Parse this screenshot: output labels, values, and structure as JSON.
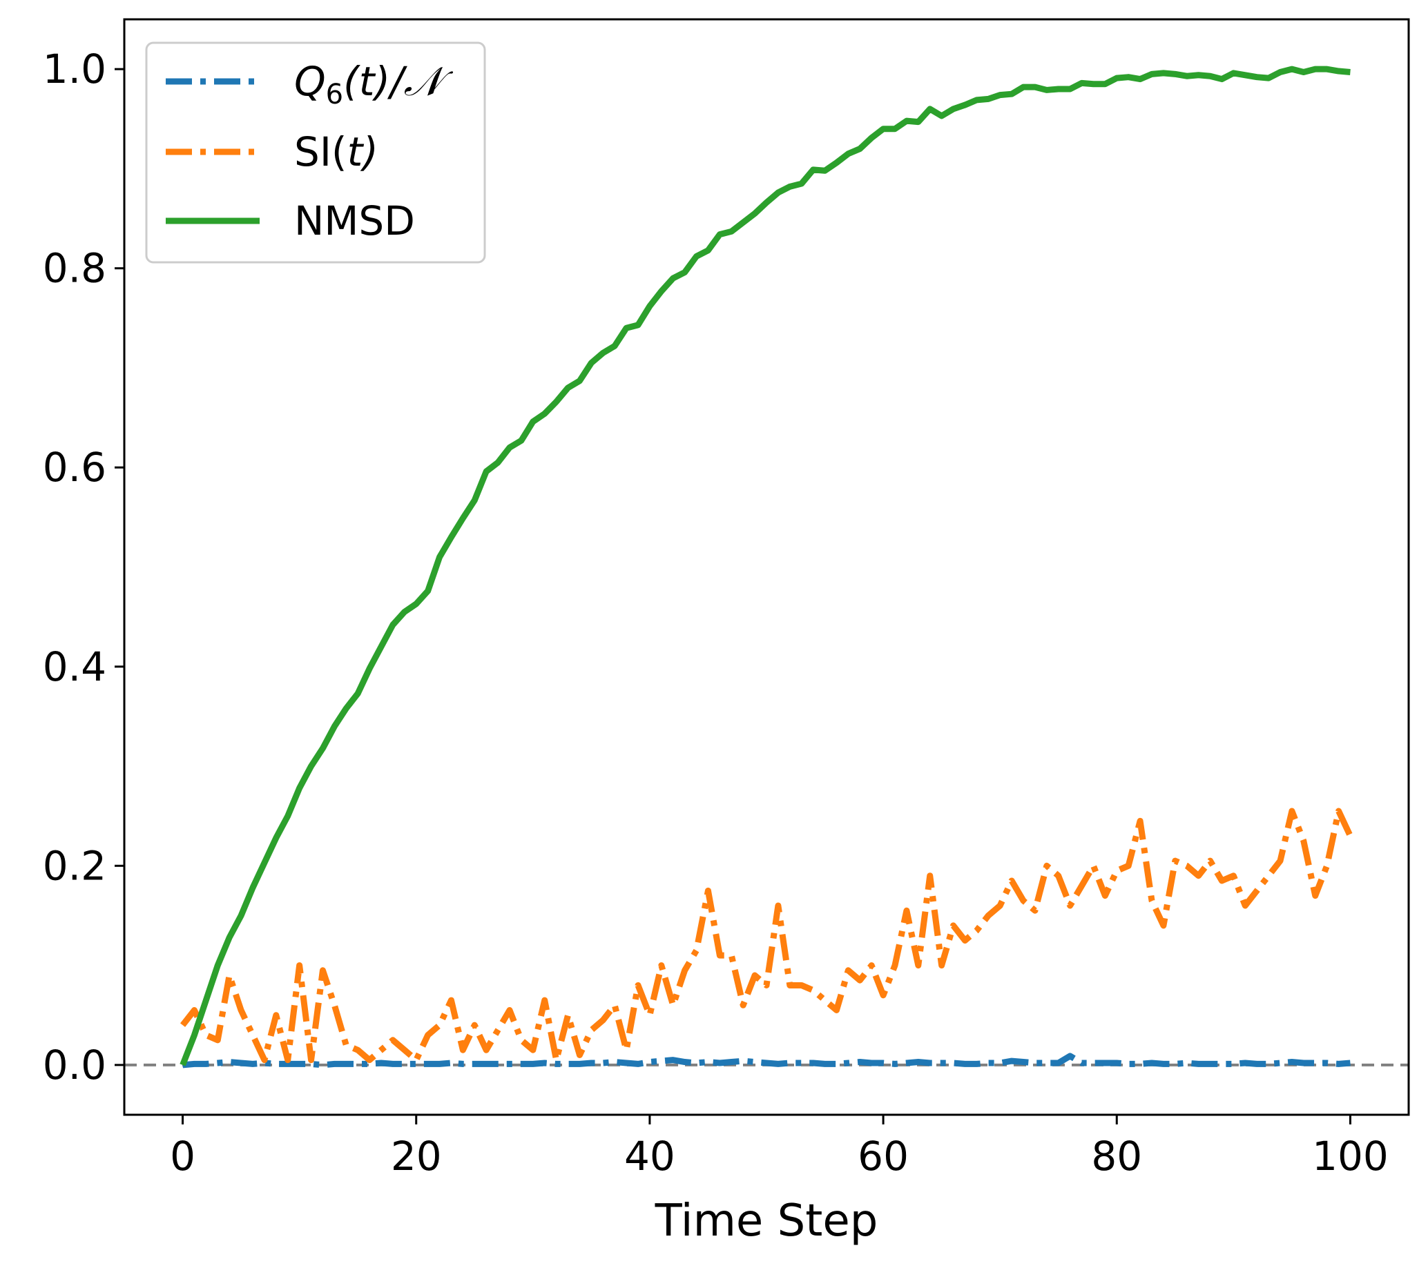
{
  "chart_data": {
    "type": "line",
    "title": "",
    "xlabel": "Time Step",
    "ylabel": "",
    "xlim": [
      -5,
      105
    ],
    "ylim": [
      -0.05,
      1.05
    ],
    "xticks": [
      0,
      20,
      40,
      60,
      80,
      100
    ],
    "xtick_labels": [
      "0",
      "20",
      "40",
      "60",
      "80",
      "100"
    ],
    "yticks": [
      0.0,
      0.2,
      0.4,
      0.6,
      0.8,
      1.0
    ],
    "ytick_labels": [
      "0.0",
      "0.2",
      "0.4",
      "0.6",
      "0.8",
      "1.0"
    ],
    "grid": false,
    "legend_position": "top-left",
    "reference_line": {
      "y": 0.0,
      "style": "dashed",
      "color": "#808080"
    },
    "x": [
      0,
      1,
      2,
      3,
      4,
      5,
      6,
      7,
      8,
      9,
      10,
      11,
      12,
      13,
      14,
      15,
      16,
      17,
      18,
      19,
      20,
      21,
      22,
      23,
      24,
      25,
      26,
      27,
      28,
      29,
      30,
      31,
      32,
      33,
      34,
      35,
      36,
      37,
      38,
      39,
      40,
      41,
      42,
      43,
      44,
      45,
      46,
      47,
      48,
      49,
      50,
      51,
      52,
      53,
      54,
      55,
      56,
      57,
      58,
      59,
      60,
      61,
      62,
      63,
      64,
      65,
      66,
      67,
      68,
      69,
      70,
      71,
      72,
      73,
      74,
      75,
      76,
      77,
      78,
      79,
      80,
      81,
      82,
      83,
      84,
      85,
      86,
      87,
      88,
      89,
      90,
      91,
      92,
      93,
      94,
      95,
      96,
      97,
      98,
      99,
      100
    ],
    "series": [
      {
        "name": "Q6(t)/N",
        "legend_main": "Q",
        "legend_sub": "6",
        "legend_rest": "(t)/𝒩",
        "color": "#1f77b4",
        "style": "dashdot",
        "values": [
          0.0,
          0.001,
          0.001,
          0.002,
          0.003,
          0.002,
          0.001,
          0.002,
          0.001,
          0.001,
          0.001,
          0.001,
          0.0,
          0.001,
          0.001,
          0.001,
          0.001,
          0.002,
          0.001,
          0.001,
          0.001,
          0.001,
          0.001,
          0.002,
          0.001,
          0.001,
          0.001,
          0.001,
          0.001,
          0.001,
          0.001,
          0.002,
          0.001,
          0.001,
          0.001,
          0.002,
          0.002,
          0.003,
          0.002,
          0.001,
          0.003,
          0.004,
          0.005,
          0.003,
          0.002,
          0.003,
          0.002,
          0.003,
          0.004,
          0.003,
          0.002,
          0.001,
          0.002,
          0.002,
          0.002,
          0.001,
          0.001,
          0.002,
          0.003,
          0.002,
          0.002,
          0.001,
          0.002,
          0.003,
          0.002,
          0.002,
          0.002,
          0.001,
          0.001,
          0.002,
          0.002,
          0.004,
          0.003,
          0.002,
          0.002,
          0.002,
          0.009,
          0.002,
          0.002,
          0.002,
          0.002,
          0.001,
          0.001,
          0.002,
          0.001,
          0.001,
          0.002,
          0.001,
          0.001,
          0.001,
          0.001,
          0.002,
          0.001,
          0.001,
          0.002,
          0.003,
          0.002,
          0.002,
          0.002,
          0.001,
          0.002
        ]
      },
      {
        "name": "SI(t)",
        "legend_main": "SI(",
        "legend_sub": "",
        "legend_rest": "t)",
        "color": "#ff7f0e",
        "style": "dashdot",
        "values": [
          0.04,
          0.055,
          0.03,
          0.025,
          0.09,
          0.055,
          0.03,
          0.005,
          0.05,
          0.005,
          0.1,
          0.005,
          0.095,
          0.06,
          0.02,
          0.015,
          0.005,
          0.015,
          0.025,
          0.015,
          0.005,
          0.03,
          0.04,
          0.065,
          0.015,
          0.04,
          0.015,
          0.035,
          0.055,
          0.025,
          0.015,
          0.065,
          0.005,
          0.05,
          0.01,
          0.035,
          0.045,
          0.06,
          0.015,
          0.08,
          0.05,
          0.1,
          0.06,
          0.095,
          0.115,
          0.175,
          0.11,
          0.11,
          0.06,
          0.09,
          0.08,
          0.16,
          0.08,
          0.08,
          0.075,
          0.065,
          0.055,
          0.095,
          0.085,
          0.1,
          0.07,
          0.1,
          0.155,
          0.1,
          0.19,
          0.1,
          0.14,
          0.125,
          0.135,
          0.15,
          0.16,
          0.185,
          0.165,
          0.155,
          0.2,
          0.19,
          0.16,
          0.18,
          0.2,
          0.17,
          0.195,
          0.2,
          0.245,
          0.165,
          0.14,
          0.205,
          0.2,
          0.19,
          0.205,
          0.185,
          0.19,
          0.16,
          0.175,
          0.19,
          0.205,
          0.255,
          0.225,
          0.17,
          0.2,
          0.255,
          0.23
        ]
      },
      {
        "name": "NMSD",
        "legend_main": "NMSD",
        "legend_sub": "",
        "legend_rest": "",
        "color": "#2ca02c",
        "style": "solid",
        "values": [
          0.0,
          0.03,
          0.065,
          0.1,
          0.128,
          0.15,
          0.178,
          0.203,
          0.228,
          0.25,
          0.278,
          0.3,
          0.318,
          0.34,
          0.358,
          0.373,
          0.398,
          0.42,
          0.442,
          0.455,
          0.463,
          0.476,
          0.51,
          0.53,
          0.549,
          0.567,
          0.596,
          0.605,
          0.62,
          0.627,
          0.646,
          0.654,
          0.666,
          0.68,
          0.687,
          0.705,
          0.715,
          0.722,
          0.74,
          0.743,
          0.762,
          0.777,
          0.79,
          0.796,
          0.812,
          0.818,
          0.834,
          0.837,
          0.846,
          0.855,
          0.866,
          0.876,
          0.882,
          0.885,
          0.899,
          0.898,
          0.906,
          0.915,
          0.92,
          0.931,
          0.94,
          0.94,
          0.948,
          0.947,
          0.96,
          0.953,
          0.96,
          0.964,
          0.969,
          0.97,
          0.974,
          0.975,
          0.982,
          0.982,
          0.979,
          0.98,
          0.98,
          0.986,
          0.985,
          0.985,
          0.991,
          0.992,
          0.99,
          0.995,
          0.996,
          0.995,
          0.993,
          0.994,
          0.993,
          0.99,
          0.996,
          0.994,
          0.992,
          0.991,
          0.997,
          1.0,
          0.997,
          1.0,
          1.0,
          0.998,
          0.997
        ]
      }
    ]
  }
}
